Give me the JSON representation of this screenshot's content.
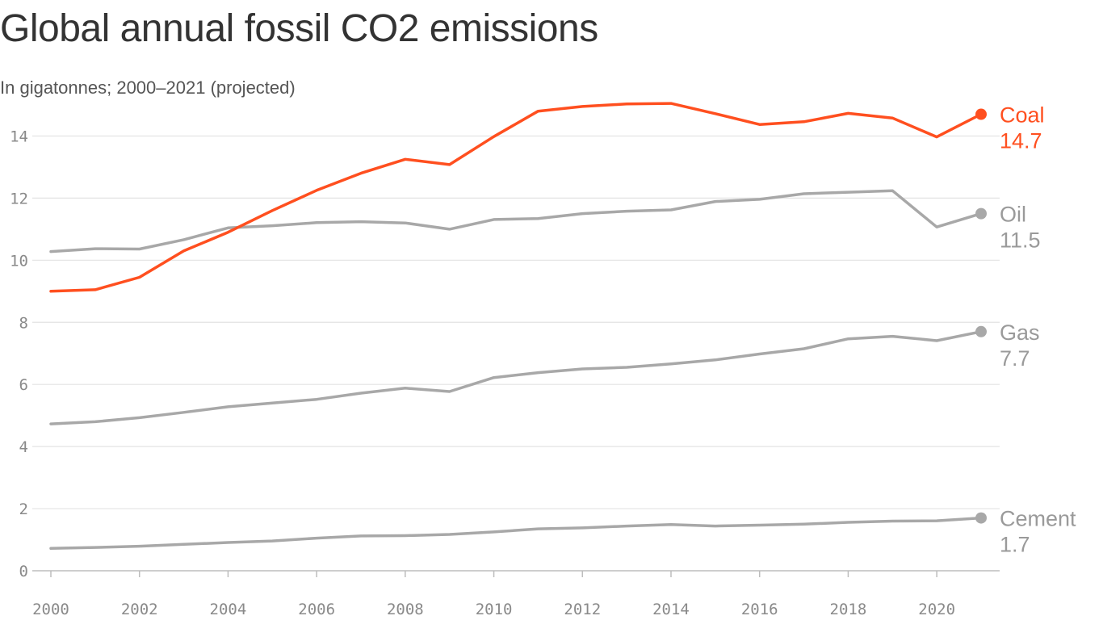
{
  "title": "Global annual fossil CO2 emissions",
  "subtitle": "In gigatonnes; 2000–2021 (projected)",
  "chart_data": {
    "type": "line",
    "title": "Global annual fossil CO2 emissions",
    "subtitle": "In gigatonnes; 2000–2021 (projected)",
    "xlabel": "",
    "ylabel": "",
    "x": [
      2000,
      2001,
      2002,
      2003,
      2004,
      2005,
      2006,
      2007,
      2008,
      2009,
      2010,
      2011,
      2012,
      2013,
      2014,
      2015,
      2016,
      2017,
      2018,
      2019,
      2020,
      2021
    ],
    "xlim": [
      2000,
      2021
    ],
    "ylim": [
      0,
      15
    ],
    "x_ticks": [
      2000,
      2002,
      2004,
      2006,
      2008,
      2010,
      2012,
      2014,
      2016,
      2018,
      2020
    ],
    "y_ticks": [
      0,
      2,
      4,
      6,
      8,
      10,
      12,
      14
    ],
    "grid": true,
    "legend": "direct-labels-right",
    "series": [
      {
        "name": "Coal",
        "end_label": "14.7",
        "color": "#ff4f1f",
        "values": [
          9.0,
          9.05,
          9.45,
          10.3,
          10.9,
          11.6,
          12.25,
          12.8,
          13.25,
          13.08,
          13.98,
          14.8,
          14.95,
          15.03,
          15.05,
          14.72,
          14.37,
          14.46,
          14.73,
          14.58,
          13.97,
          14.7
        ]
      },
      {
        "name": "Oil",
        "end_label": "11.5",
        "color": "#a8a8a8",
        "values": [
          10.28,
          10.37,
          10.36,
          10.66,
          11.04,
          11.11,
          11.21,
          11.24,
          11.2,
          11.0,
          11.31,
          11.34,
          11.5,
          11.58,
          11.62,
          11.89,
          11.96,
          12.14,
          12.19,
          12.24,
          11.07,
          11.5
        ]
      },
      {
        "name": "Gas",
        "end_label": "7.7",
        "color": "#a8a8a8",
        "values": [
          4.73,
          4.8,
          4.93,
          5.1,
          5.28,
          5.4,
          5.52,
          5.72,
          5.88,
          5.77,
          6.22,
          6.38,
          6.5,
          6.55,
          6.66,
          6.79,
          6.98,
          7.15,
          7.47,
          7.55,
          7.41,
          7.7
        ]
      },
      {
        "name": "Cement",
        "end_label": "1.7",
        "color": "#a8a8a8",
        "values": [
          0.72,
          0.75,
          0.79,
          0.85,
          0.91,
          0.96,
          1.05,
          1.12,
          1.13,
          1.17,
          1.25,
          1.35,
          1.38,
          1.44,
          1.49,
          1.44,
          1.47,
          1.5,
          1.56,
          1.6,
          1.61,
          1.7
        ]
      }
    ]
  }
}
